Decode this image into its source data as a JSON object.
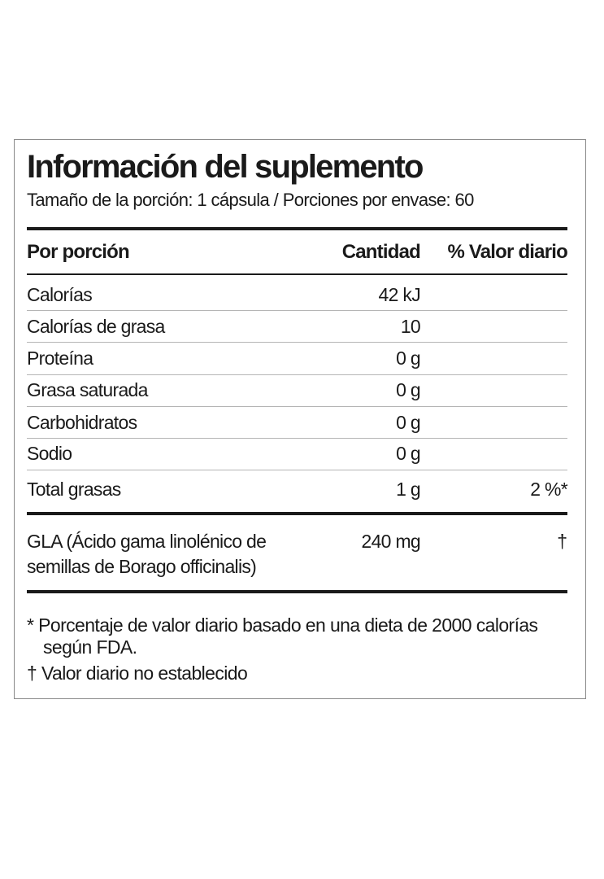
{
  "label": {
    "title": "Información del suplemento",
    "serving_size": "Tamaño de la porción: 1 cápsula  /  Porciones por envase: 60",
    "headers": {
      "per_serving": "Por porción",
      "amount": "Cantidad",
      "daily_value": "% Valor diario"
    },
    "rows": [
      {
        "name": "Calorías",
        "amount": "42 kJ",
        "dv": ""
      },
      {
        "name": "Calorías de grasa",
        "amount": "10",
        "dv": ""
      },
      {
        "name": "Proteína",
        "amount": "0 g",
        "dv": ""
      },
      {
        "name": "Grasa saturada",
        "amount": "0 g",
        "dv": ""
      },
      {
        "name": "Carbohidratos",
        "amount": "0 g",
        "dv": ""
      },
      {
        "name": "Sodio",
        "amount": "0 g",
        "dv": ""
      },
      {
        "name": "Total grasas",
        "amount": "1 g",
        "dv": "2 %*"
      }
    ],
    "gla": {
      "name": "GLA (Ácido gama linolénico de semillas de Borago officinalis)",
      "amount": "240 mg",
      "dv": "†"
    },
    "footnotes": {
      "daily_value_line1": "* Porcentaje de valor diario basado en una dieta  de 2000 calorías",
      "daily_value_line2": "según FDA.",
      "not_established": "† Valor diario no establecido"
    }
  }
}
